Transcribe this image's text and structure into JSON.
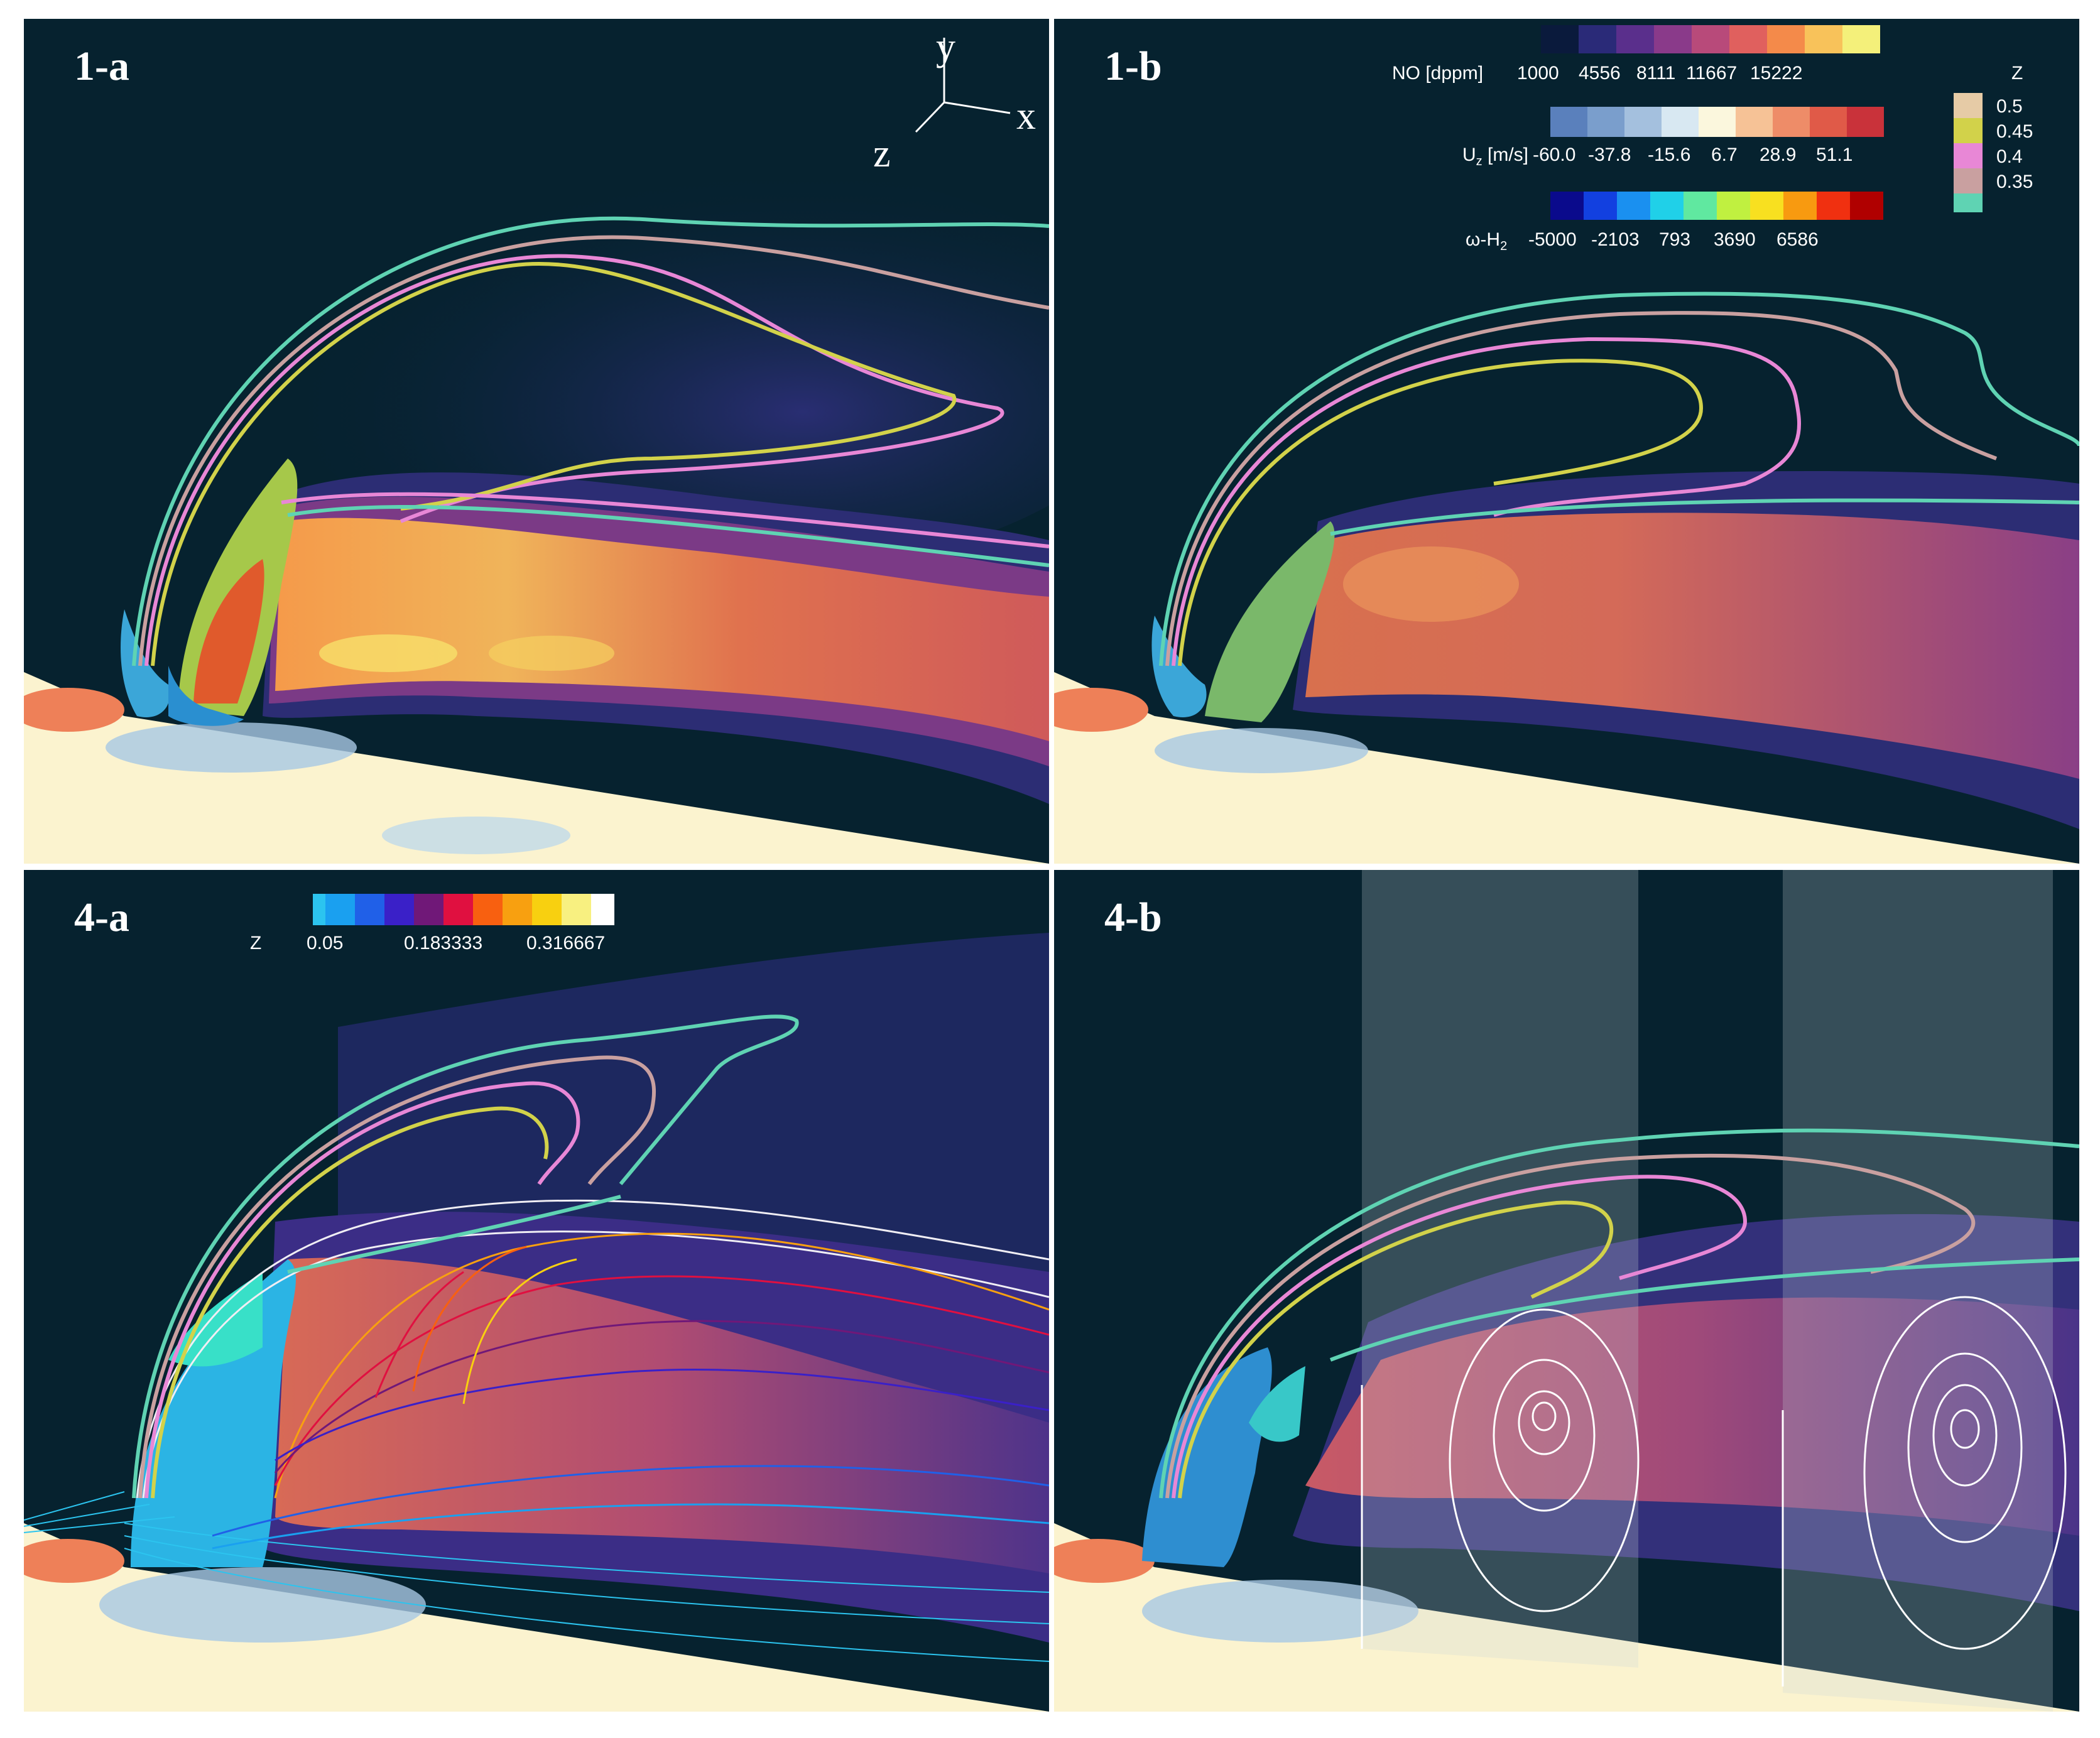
{
  "panels": {
    "p1a": {
      "label": "1-a"
    },
    "p1b": {
      "label": "1-b"
    },
    "p4a": {
      "label": "4-a"
    },
    "p4b": {
      "label": "4-b"
    }
  },
  "axes": {
    "y": "y",
    "x": "x",
    "z": "z"
  },
  "legends": {
    "no": {
      "title": "NO [dppm]",
      "ticks": [
        "1000",
        "4556",
        "8111",
        "11667",
        "15222"
      ],
      "colors": [
        "#0a1a3c",
        "#2a2a78",
        "#5a2f8c",
        "#8a3a8a",
        "#b84a7a",
        "#e0605e",
        "#f48a4a",
        "#f8c25a",
        "#f4f07a"
      ]
    },
    "uz": {
      "title_main": "U",
      "title_sub": "z",
      "title_unit": " [m/s]",
      "ticks": [
        "-60.0",
        "-37.8",
        "-15.6",
        "6.7",
        "28.9",
        "51.1"
      ],
      "colors": [
        "#5a80bc",
        "#7a9ecc",
        "#a4c0de",
        "#d8e8f2",
        "#fbf7dd",
        "#f6c296",
        "#ee8c68",
        "#e05a48",
        "#c9323a"
      ]
    },
    "wh2": {
      "title_main": "ω-H",
      "title_sub": "2",
      "ticks": [
        "-5000",
        "-2103",
        "793",
        "3690",
        "6586"
      ],
      "colors": [
        "#0a0a8c",
        "#1240e0",
        "#1a90f0",
        "#20d0e8",
        "#60e8a0",
        "#c0f040",
        "#f8e020",
        "#f89a10",
        "#f03010",
        "#b00000"
      ]
    },
    "z_lines": {
      "title": "Z",
      "entries": [
        {
          "label": "0.5",
          "color": "#e6cba6"
        },
        {
          "label": "0.45",
          "color": "#d2d24a"
        },
        {
          "label": "0.4",
          "color": "#e887d6"
        },
        {
          "label": "0.35",
          "color": "#c9a0a0"
        }
      ],
      "extra_color": "#5fd3b3"
    },
    "z_iso": {
      "title": "Z",
      "ticks": [
        "0.05",
        "0.183333",
        "0.316667"
      ],
      "colors": [
        "#2cc4ef",
        "#1aa0f0",
        "#2060e8",
        "#3a20c8",
        "#701878",
        "#e01040",
        "#f86010",
        "#f8a010",
        "#f8d010",
        "#f8f080",
        "#ffffff"
      ]
    }
  },
  "colors": {
    "background": "#06222f",
    "z05": "#e6cba6",
    "z045": "#d2d24a",
    "z04": "#e887d6",
    "z035": "#c9a0a0",
    "z03": "#5fd3b3"
  }
}
